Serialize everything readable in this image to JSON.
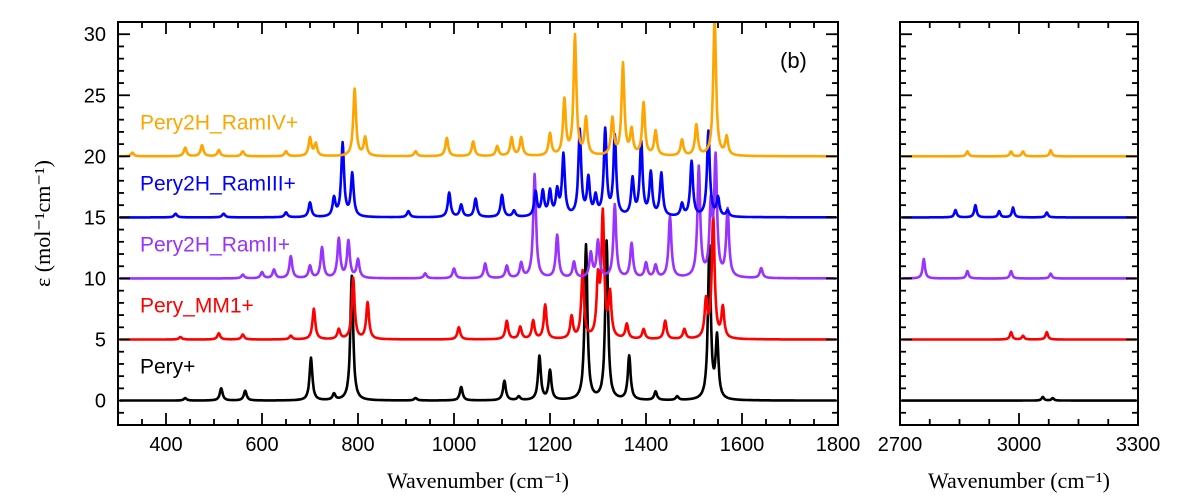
{
  "chart_data": {
    "type": "line",
    "panel_label": "(b)",
    "ylabel": "ε (mol⁻¹cm⁻¹)",
    "ylim": [
      -2,
      31
    ],
    "yticks": [
      0,
      5,
      10,
      15,
      20,
      25,
      30
    ],
    "grid": false,
    "legend": "inline labels on the left of each trace",
    "panels": [
      {
        "xlabel": "Wavenumber (cm⁻¹)",
        "xlim": [
          300,
          1800
        ],
        "xticks": [
          400,
          600,
          800,
          1000,
          1200,
          1400,
          1600,
          1800
        ]
      },
      {
        "xlabel": "Wavenumber (cm⁻¹)",
        "xlim": [
          2700,
          3300
        ],
        "xticks": [
          2700,
          3000,
          3300
        ]
      }
    ],
    "series": [
      {
        "name": "Pery+",
        "color": "#000000",
        "offset": 0,
        "peaks": [
          [
            440,
            0.2
          ],
          [
            515,
            1.0
          ],
          [
            565,
            0.8
          ],
          [
            702,
            3.5
          ],
          [
            750,
            0.5
          ],
          [
            787,
            10.2
          ],
          [
            920,
            0.2
          ],
          [
            1015,
            1.1
          ],
          [
            1105,
            1.6
          ],
          [
            1135,
            0.3
          ],
          [
            1178,
            3.6
          ],
          [
            1200,
            2.4
          ],
          [
            1275,
            12.7
          ],
          [
            1318,
            13.0
          ],
          [
            1365,
            3.6
          ],
          [
            1420,
            0.7
          ],
          [
            1465,
            0.3
          ],
          [
            1532,
            12.5
          ],
          [
            1548,
            5.0
          ],
          [
            3060,
            0.3
          ],
          [
            3085,
            0.2
          ]
        ]
      },
      {
        "name": "Pery_MM1+",
        "color": "#ff0000",
        "offset": 5,
        "peaks": [
          [
            430,
            0.2
          ],
          [
            510,
            0.5
          ],
          [
            560,
            0.4
          ],
          [
            660,
            0.3
          ],
          [
            708,
            2.5
          ],
          [
            760,
            0.8
          ],
          [
            790,
            5.0
          ],
          [
            820,
            3.0
          ],
          [
            1010,
            1.0
          ],
          [
            1110,
            1.5
          ],
          [
            1138,
            1.0
          ],
          [
            1165,
            1.5
          ],
          [
            1190,
            2.8
          ],
          [
            1245,
            1.8
          ],
          [
            1268,
            5.5
          ],
          [
            1300,
            4.5
          ],
          [
            1310,
            10.0
          ],
          [
            1325,
            3.5
          ],
          [
            1360,
            1.2
          ],
          [
            1395,
            0.8
          ],
          [
            1440,
            1.5
          ],
          [
            1480,
            0.8
          ],
          [
            1525,
            3.0
          ],
          [
            1540,
            10.0
          ],
          [
            1560,
            2.5
          ],
          [
            2980,
            0.6
          ],
          [
            3010,
            0.3
          ],
          [
            3070,
            0.6
          ]
        ]
      },
      {
        "name": "Pery2H_RamII+",
        "color": "#9933ff",
        "offset": 10,
        "peaks": [
          [
            560,
            0.3
          ],
          [
            600,
            0.5
          ],
          [
            625,
            0.7
          ],
          [
            660,
            1.8
          ],
          [
            700,
            1.0
          ],
          [
            725,
            2.5
          ],
          [
            760,
            3.2
          ],
          [
            780,
            3.0
          ],
          [
            800,
            1.5
          ],
          [
            940,
            0.4
          ],
          [
            1000,
            0.8
          ],
          [
            1065,
            1.2
          ],
          [
            1110,
            1.0
          ],
          [
            1140,
            1.2
          ],
          [
            1168,
            8.5
          ],
          [
            1215,
            3.5
          ],
          [
            1250,
            1.3
          ],
          [
            1285,
            2.0
          ],
          [
            1300,
            3.0
          ],
          [
            1335,
            6.0
          ],
          [
            1370,
            2.8
          ],
          [
            1400,
            1.2
          ],
          [
            1420,
            1.0
          ],
          [
            1450,
            5.0
          ],
          [
            1510,
            9.0
          ],
          [
            1535,
            5.5
          ],
          [
            1545,
            9.5
          ],
          [
            1570,
            5.5
          ],
          [
            1640,
            0.8
          ],
          [
            2760,
            1.6
          ],
          [
            2870,
            0.6
          ],
          [
            2980,
            0.6
          ],
          [
            3080,
            0.4
          ]
        ]
      },
      {
        "name": "Pery2H_RamIII+",
        "color": "#0000ff",
        "offset": 15,
        "peaks": [
          [
            420,
            0.3
          ],
          [
            520,
            0.3
          ],
          [
            650,
            0.4
          ],
          [
            700,
            1.2
          ],
          [
            750,
            1.5
          ],
          [
            768,
            6.0
          ],
          [
            788,
            3.5
          ],
          [
            905,
            0.5
          ],
          [
            990,
            2.0
          ],
          [
            1015,
            1.0
          ],
          [
            1045,
            1.5
          ],
          [
            1100,
            1.8
          ],
          [
            1125,
            0.5
          ],
          [
            1170,
            2.0
          ],
          [
            1185,
            2.0
          ],
          [
            1200,
            2.0
          ],
          [
            1215,
            2.0
          ],
          [
            1228,
            5.0
          ],
          [
            1262,
            7.0
          ],
          [
            1280,
            3.0
          ],
          [
            1295,
            1.5
          ],
          [
            1315,
            7.0
          ],
          [
            1335,
            6.5
          ],
          [
            1372,
            3.0
          ],
          [
            1390,
            6.0
          ],
          [
            1410,
            3.5
          ],
          [
            1432,
            3.5
          ],
          [
            1475,
            1.0
          ],
          [
            1495,
            4.5
          ],
          [
            1530,
            7.0
          ],
          [
            1550,
            1.5
          ],
          [
            1570,
            0.5
          ],
          [
            2840,
            0.6
          ],
          [
            2890,
            1.0
          ],
          [
            2950,
            0.5
          ],
          [
            2985,
            0.8
          ],
          [
            3070,
            0.4
          ]
        ]
      },
      {
        "name": "Pery2H_RamIV+",
        "color": "#ffa500",
        "offset": 20,
        "peaks": [
          [
            330,
            0.3
          ],
          [
            440,
            0.7
          ],
          [
            475,
            0.9
          ],
          [
            510,
            0.5
          ],
          [
            560,
            0.4
          ],
          [
            650,
            0.4
          ],
          [
            700,
            1.5
          ],
          [
            712,
            1.0
          ],
          [
            793,
            5.5
          ],
          [
            815,
            1.5
          ],
          [
            920,
            0.4
          ],
          [
            985,
            1.5
          ],
          [
            1040,
            1.2
          ],
          [
            1090,
            0.8
          ],
          [
            1120,
            1.5
          ],
          [
            1140,
            1.5
          ],
          [
            1200,
            1.8
          ],
          [
            1230,
            4.5
          ],
          [
            1252,
            9.8
          ],
          [
            1275,
            3.0
          ],
          [
            1330,
            3.0
          ],
          [
            1352,
            7.5
          ],
          [
            1370,
            2.0
          ],
          [
            1395,
            4.3
          ],
          [
            1420,
            2.0
          ],
          [
            1475,
            1.3
          ],
          [
            1505,
            2.5
          ],
          [
            1543,
            11.5
          ],
          [
            1568,
            1.5
          ],
          [
            2870,
            0.4
          ],
          [
            2980,
            0.4
          ],
          [
            3010,
            0.4
          ],
          [
            3080,
            0.5
          ]
        ]
      }
    ]
  }
}
